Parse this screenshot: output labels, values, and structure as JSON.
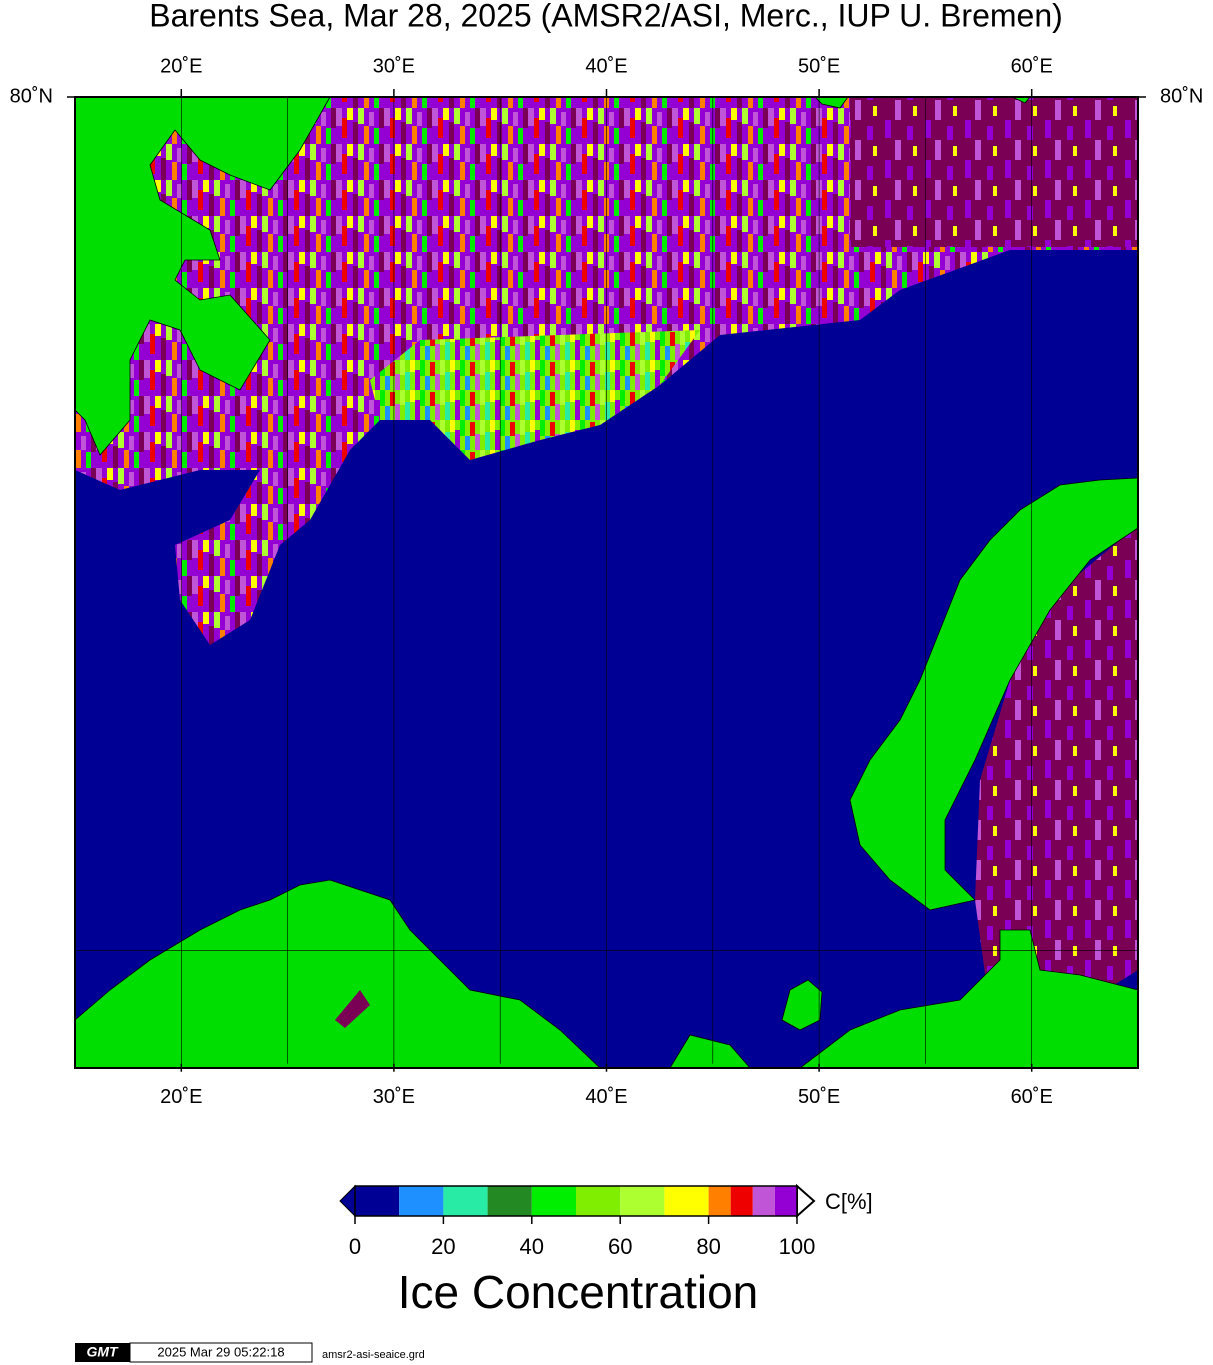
{
  "title": "Barents Sea, Mar 28, 2025 (AMSR2/ASI, Merc., IUP U. Bremen)",
  "map": {
    "lon_range": [
      15,
      65
    ],
    "lat_range": [
      68.1,
      80
    ],
    "lon_ticks": [
      {
        "value": 20,
        "label": "20˚E"
      },
      {
        "value": 30,
        "label": "30˚E"
      },
      {
        "value": 40,
        "label": "40˚E"
      },
      {
        "value": 50,
        "label": "50˚E"
      },
      {
        "value": 60,
        "label": "60˚E"
      }
    ],
    "lat_ticks": [
      {
        "value": 80,
        "label": "80˚N"
      }
    ],
    "lon_grid": [
      20,
      25,
      30,
      35,
      40,
      45,
      50,
      55,
      60
    ],
    "lat_grid": [
      70
    ]
  },
  "colorbar": {
    "bounds": [
      0,
      10,
      20,
      30,
      40,
      50,
      60,
      70,
      80,
      85,
      90,
      95,
      100
    ],
    "colors": [
      "#000094",
      "#1e90ff",
      "#28eba5",
      "#238a23",
      "#00ee00",
      "#7fee00",
      "#adff2f",
      "#ffff00",
      "#ff7f00",
      "#ee0000",
      "#c055d8",
      "#9400d3"
    ],
    "ticks": [
      0,
      20,
      40,
      60,
      80,
      100
    ],
    "unit": "C[%]",
    "label": "Ice Concentration"
  },
  "footer": {
    "logo": "GMT",
    "timestamp": "2025 Mar 29 05:22:18",
    "file": "amsr2-asi-seaice.grd"
  }
}
